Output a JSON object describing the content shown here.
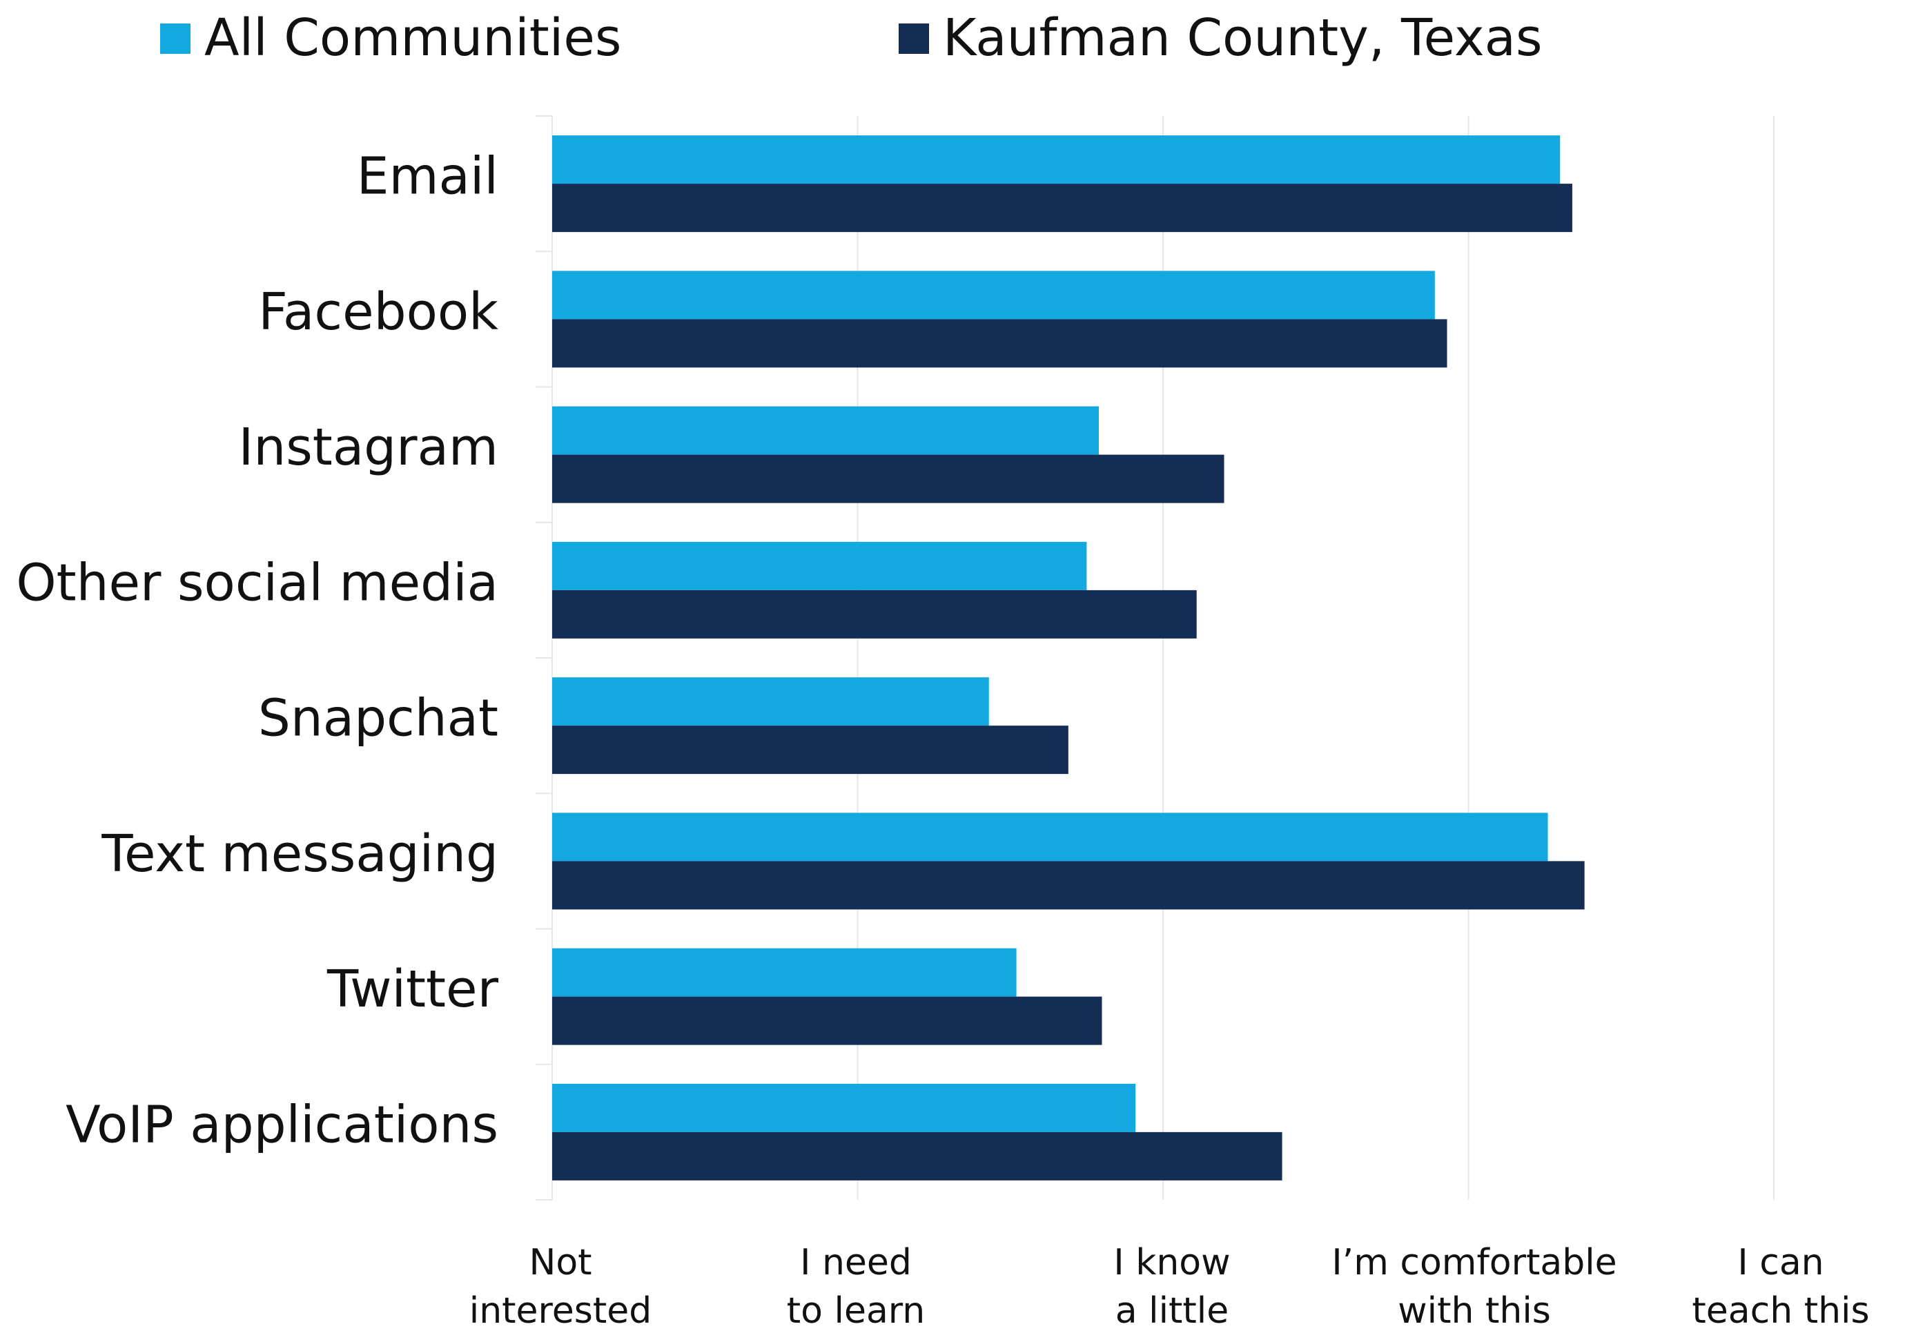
{
  "colors": {
    "series_0": "#14A8E1",
    "series_1": "#142D55",
    "grid": "#E6E6E6",
    "text": "#111111"
  },
  "chart_data": {
    "type": "bar",
    "orientation": "horizontal",
    "categories": [
      "Email",
      "Facebook",
      "Instagram",
      "Other social media",
      "Snapchat",
      "Text messaging",
      "Twitter",
      "VoIP applications"
    ],
    "series": [
      {
        "name": "All Communities",
        "values": [
          4.3,
          3.89,
          2.79,
          2.75,
          2.43,
          4.26,
          2.52,
          2.91
        ]
      },
      {
        "name": "Kaufman County, Texas",
        "values": [
          4.34,
          3.93,
          3.2,
          3.11,
          2.69,
          4.38,
          2.8,
          3.39
        ]
      }
    ],
    "xlim": [
      1,
      5
    ],
    "x_ticks": [
      {
        "value": 1,
        "lines": [
          "Not",
          "interested"
        ]
      },
      {
        "value": 2,
        "lines": [
          "I need",
          "to learn"
        ]
      },
      {
        "value": 3,
        "lines": [
          "I know",
          "a little"
        ]
      },
      {
        "value": 4,
        "lines": [
          "I’m comfortable",
          "with this"
        ]
      },
      {
        "value": 5,
        "lines": [
          "I can",
          "teach this"
        ]
      }
    ],
    "title": "",
    "xlabel": "",
    "ylabel": "",
    "grid": "vertical",
    "legend_position": "top"
  }
}
